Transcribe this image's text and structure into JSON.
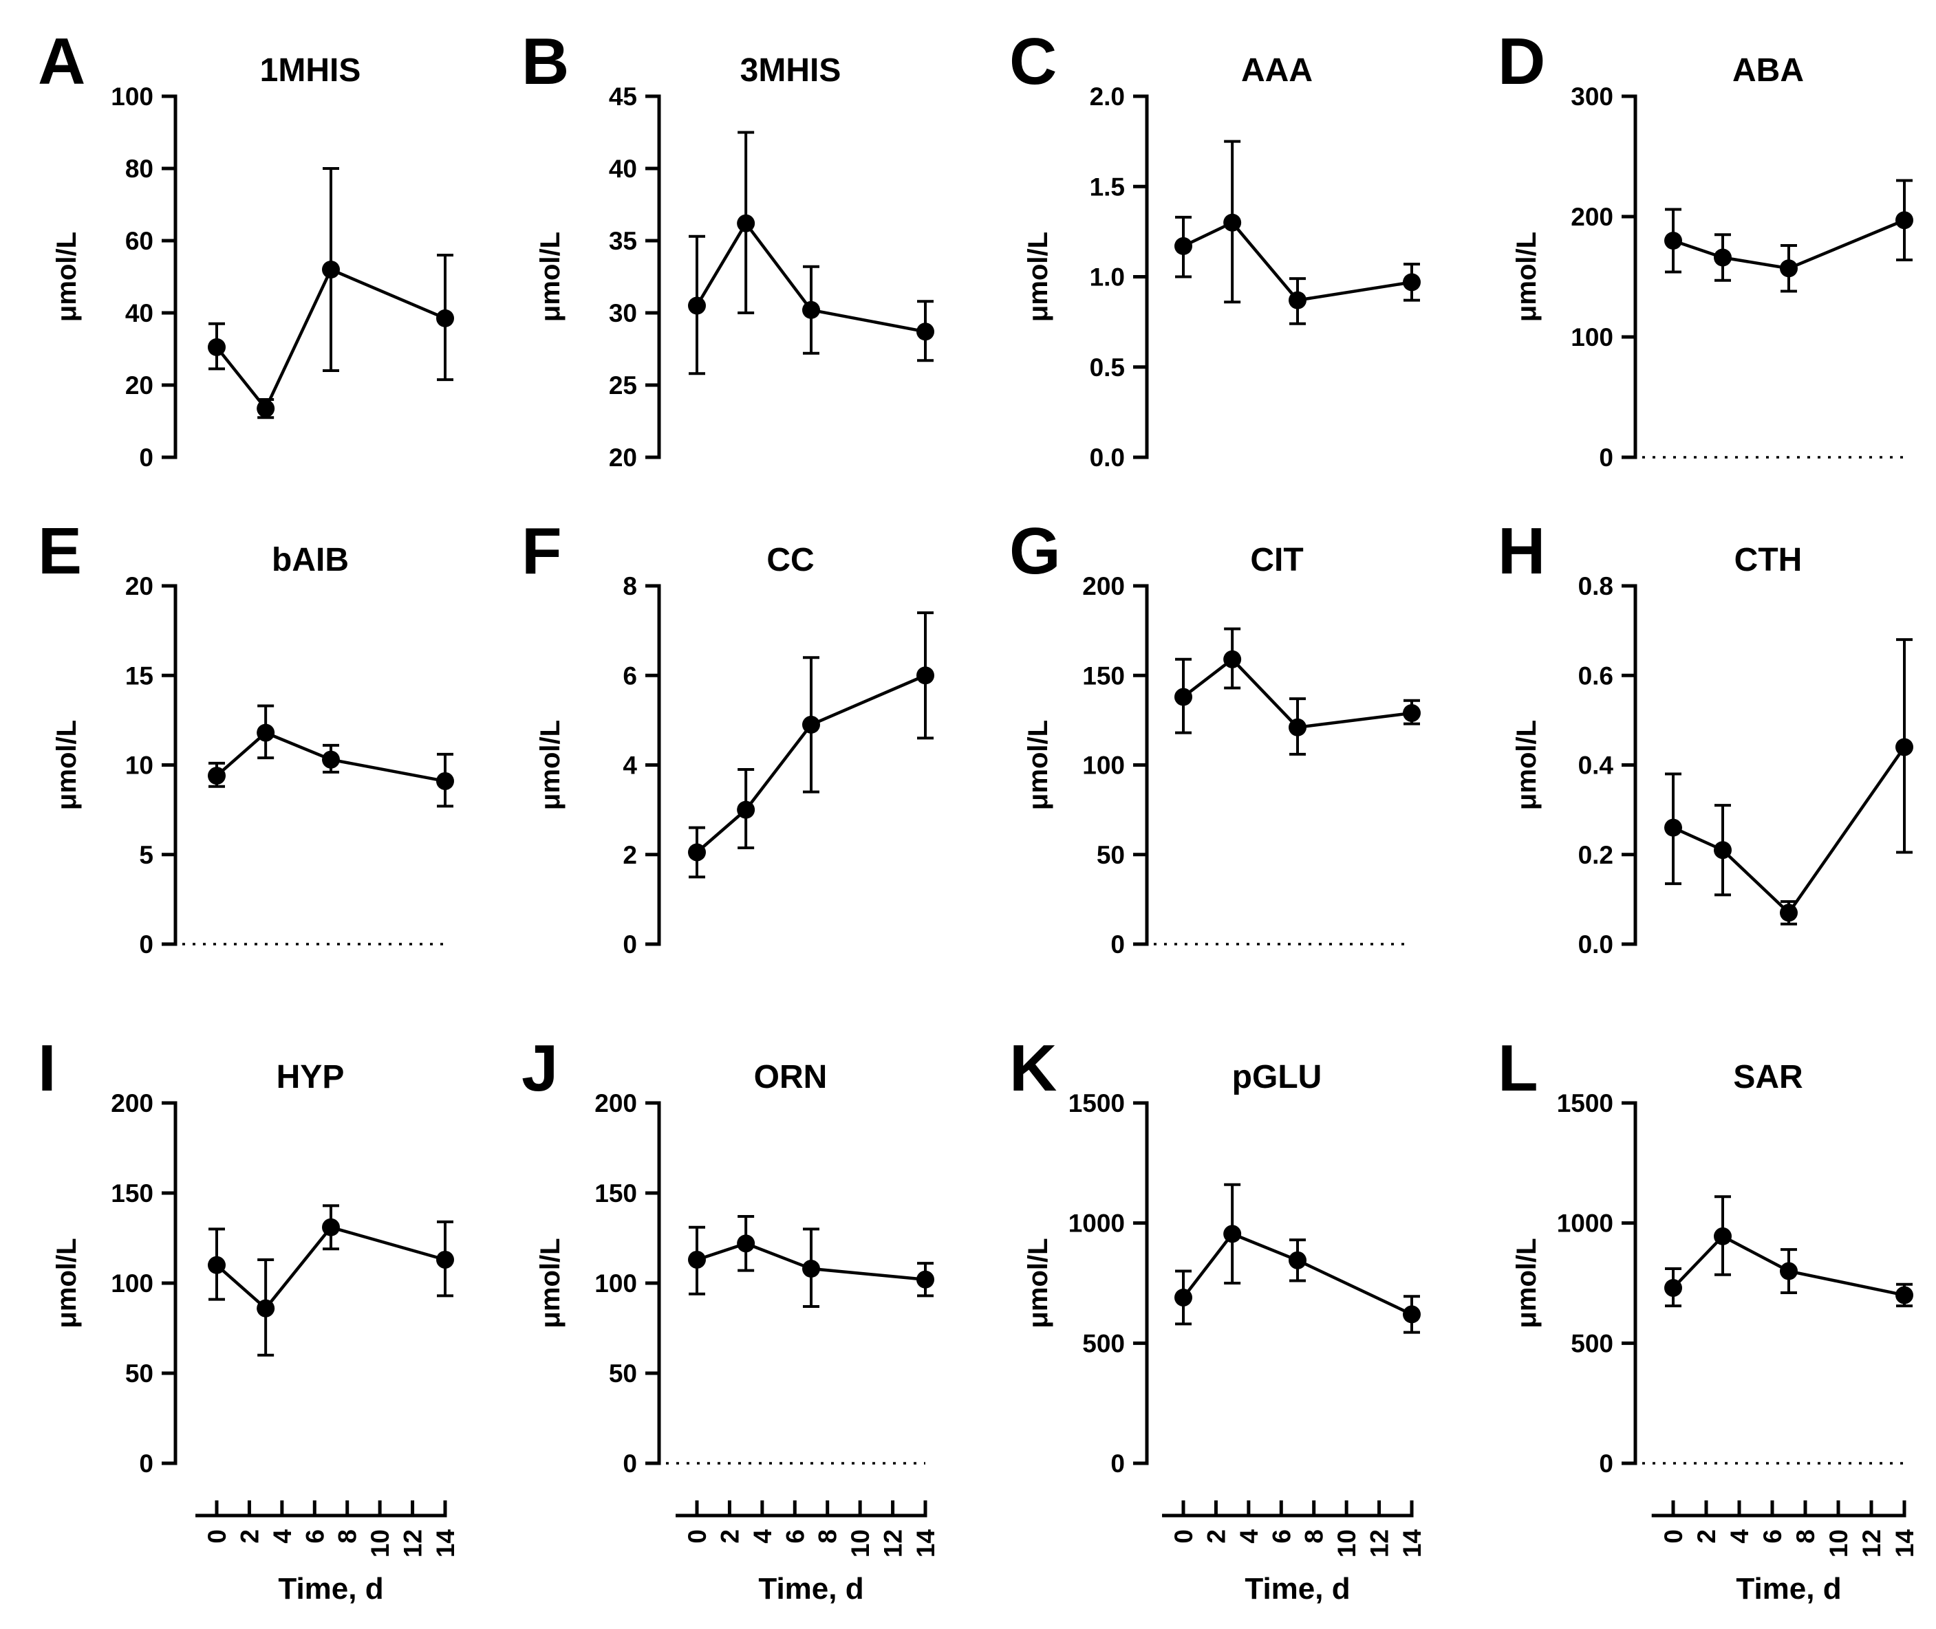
{
  "figure": {
    "ylabel": "μmol/L",
    "xlabel": "Time, d",
    "x_ticks": [
      "0",
      "2",
      "4",
      "6",
      "8",
      "10",
      "12",
      "14"
    ]
  },
  "chart_data": [
    {
      "type": "line",
      "panel": "A",
      "title": "1MHIS",
      "ylabel": "μmol/L",
      "xlabel": "Time, d",
      "x": [
        0,
        3,
        7,
        14
      ],
      "values": [
        30.5,
        13.5,
        52,
        38.5
      ],
      "error_low": [
        24.5,
        11,
        24,
        21.5
      ],
      "error_high": [
        37,
        16,
        80,
        56
      ],
      "ylim": [
        0,
        100
      ],
      "yticks": [
        "0",
        "20",
        "40",
        "60",
        "80",
        "100"
      ],
      "zero_line": false
    },
    {
      "type": "line",
      "panel": "B",
      "title": "3MHIS",
      "ylabel": "μmol/L",
      "xlabel": "Time, d",
      "x": [
        0,
        3,
        7,
        14
      ],
      "values": [
        30.5,
        36.2,
        30.2,
        28.7
      ],
      "error_low": [
        25.8,
        30,
        27.2,
        26.7
      ],
      "error_high": [
        35.3,
        42.5,
        33.2,
        30.8
      ],
      "ylim": [
        20,
        45
      ],
      "yticks": [
        "20",
        "25",
        "30",
        "35",
        "40",
        "45"
      ],
      "zero_line": false
    },
    {
      "type": "line",
      "panel": "C",
      "title": "AAA",
      "ylabel": "μmol/L",
      "xlabel": "Time, d",
      "x": [
        0,
        3,
        7,
        14
      ],
      "values": [
        1.17,
        1.3,
        0.87,
        0.97
      ],
      "error_low": [
        1.0,
        0.86,
        0.74,
        0.87
      ],
      "error_high": [
        1.33,
        1.75,
        0.99,
        1.07
      ],
      "ylim": [
        0,
        2
      ],
      "yticks": [
        "0.0",
        "0.5",
        "1.0",
        "1.5",
        "2.0"
      ],
      "zero_line": false
    },
    {
      "type": "line",
      "panel": "D",
      "title": "ABA",
      "ylabel": "μmol/L",
      "xlabel": "Time, d",
      "x": [
        0,
        3,
        7,
        14
      ],
      "values": [
        180,
        166,
        157,
        197
      ],
      "error_low": [
        154,
        147,
        138,
        164
      ],
      "error_high": [
        206,
        185,
        176,
        230
      ],
      "ylim": [
        0,
        300
      ],
      "yticks": [
        "0",
        "100",
        "200",
        "300"
      ],
      "zero_line": true
    },
    {
      "type": "line",
      "panel": "E",
      "title": "bAIB",
      "ylabel": "μmol/L",
      "xlabel": "Time, d",
      "x": [
        0,
        3,
        7,
        14
      ],
      "values": [
        9.4,
        11.8,
        10.3,
        9.1
      ],
      "error_low": [
        8.8,
        10.4,
        9.6,
        7.7
      ],
      "error_high": [
        10.1,
        13.3,
        11.1,
        10.6
      ],
      "ylim": [
        0,
        20
      ],
      "yticks": [
        "0",
        "5",
        "10",
        "15",
        "20"
      ],
      "zero_line": true
    },
    {
      "type": "line",
      "panel": "F",
      "title": "CC",
      "ylabel": "μmol/L",
      "xlabel": "Time, d",
      "x": [
        0,
        3,
        7,
        14
      ],
      "values": [
        2.05,
        3.0,
        4.9,
        6.0
      ],
      "error_low": [
        1.5,
        2.15,
        3.4,
        4.6
      ],
      "error_high": [
        2.6,
        3.9,
        6.4,
        7.4
      ],
      "ylim": [
        0,
        8
      ],
      "yticks": [
        "0",
        "2",
        "4",
        "6",
        "8"
      ],
      "zero_line": false
    },
    {
      "type": "line",
      "panel": "G",
      "title": "CIT",
      "ylabel": "μmol/L",
      "xlabel": "Time, d",
      "x": [
        0,
        3,
        7,
        14
      ],
      "values": [
        138,
        159,
        121,
        129
      ],
      "error_low": [
        118,
        143,
        106,
        123
      ],
      "error_high": [
        159,
        176,
        137,
        136
      ],
      "ylim": [
        0,
        200
      ],
      "yticks": [
        "0",
        "50",
        "100",
        "150",
        "200"
      ],
      "zero_line": true
    },
    {
      "type": "line",
      "panel": "H",
      "title": "CTH",
      "ylabel": "μmol/L",
      "xlabel": "Time, d",
      "x": [
        0,
        3,
        7,
        14
      ],
      "values": [
        0.26,
        0.21,
        0.07,
        0.44
      ],
      "error_low": [
        0.135,
        0.11,
        0.045,
        0.205
      ],
      "error_high": [
        0.38,
        0.31,
        0.095,
        0.68
      ],
      "ylim": [
        0,
        0.8
      ],
      "yticks": [
        "0.0",
        "0.2",
        "0.4",
        "0.6",
        "0.8"
      ],
      "zero_line": false
    },
    {
      "type": "line",
      "panel": "I",
      "title": "HYP",
      "ylabel": "μmol/L",
      "xlabel": "Time, d",
      "x": [
        0,
        3,
        7,
        14
      ],
      "values": [
        110,
        86,
        131,
        113
      ],
      "error_low": [
        91,
        60,
        119,
        93
      ],
      "error_high": [
        130,
        113,
        143,
        134
      ],
      "ylim": [
        0,
        200
      ],
      "yticks": [
        "0",
        "50",
        "100",
        "150",
        "200"
      ],
      "zero_line": false
    },
    {
      "type": "line",
      "panel": "J",
      "title": "ORN",
      "ylabel": "μmol/L",
      "xlabel": "Time, d",
      "x": [
        0,
        3,
        7,
        14
      ],
      "values": [
        113,
        122,
        108,
        102
      ],
      "error_low": [
        94,
        107,
        87,
        93
      ],
      "error_high": [
        131,
        137,
        130,
        111
      ],
      "ylim": [
        0,
        200
      ],
      "yticks": [
        "0",
        "50",
        "100",
        "150",
        "200"
      ],
      "zero_line": true
    },
    {
      "type": "line",
      "panel": "K",
      "title": "pGLU",
      "ylabel": "μmol/L",
      "xlabel": "Time, d",
      "x": [
        0,
        3,
        7,
        14
      ],
      "values": [
        690,
        955,
        845,
        620
      ],
      "error_low": [
        580,
        750,
        760,
        545
      ],
      "error_high": [
        800,
        1160,
        930,
        695
      ],
      "ylim": [
        0,
        1500
      ],
      "yticks": [
        "0",
        "500",
        "1000",
        "1500"
      ],
      "zero_line": false
    },
    {
      "type": "line",
      "panel": "L",
      "title": "SAR",
      "ylabel": "μmol/L",
      "xlabel": "Time, d",
      "x": [
        0,
        3,
        7,
        14
      ],
      "values": [
        730,
        945,
        800,
        700
      ],
      "error_low": [
        655,
        785,
        710,
        655
      ],
      "error_high": [
        810,
        1110,
        890,
        745
      ],
      "ylim": [
        0,
        1500
      ],
      "yticks": [
        "0",
        "500",
        "1000",
        "1500"
      ],
      "zero_line": true
    }
  ]
}
